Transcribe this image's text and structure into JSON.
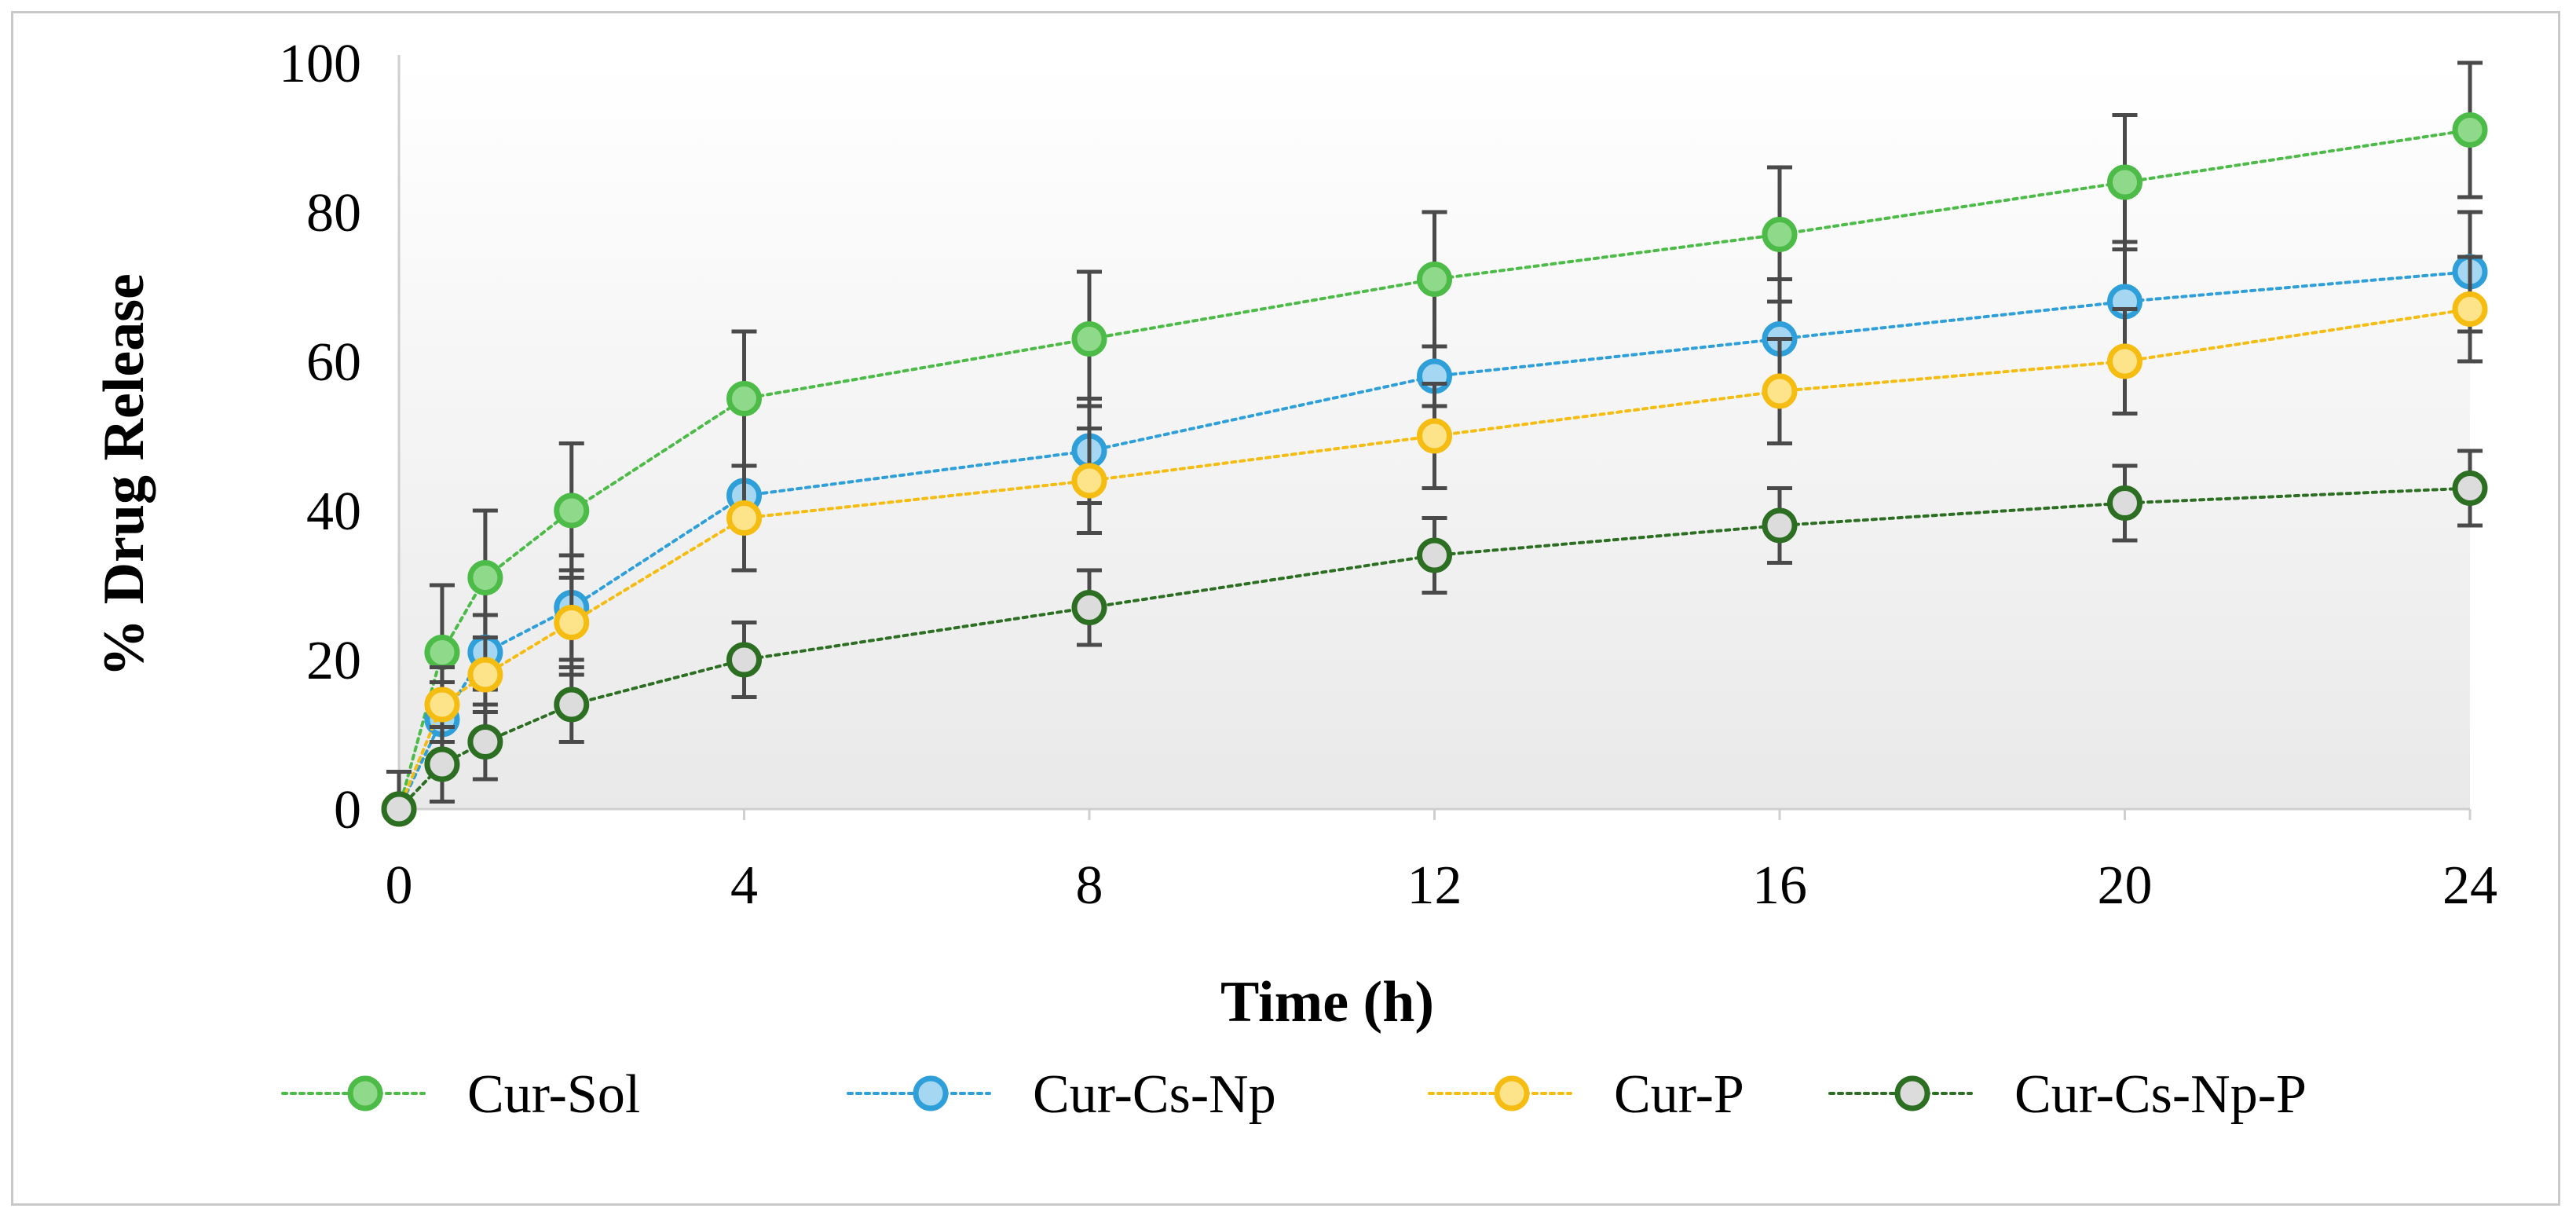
{
  "chart_data": {
    "type": "line",
    "title": "",
    "xlabel": "Time (h)",
    "ylabel": "% Drug Release",
    "x": [
      0,
      0.5,
      1,
      2,
      4,
      8,
      12,
      16,
      20,
      24
    ],
    "x_ticks": [
      0,
      4,
      8,
      12,
      16,
      20,
      24
    ],
    "y_ticks": [
      0,
      20,
      40,
      60,
      80,
      100
    ],
    "xlim": [
      0,
      24
    ],
    "ylim": [
      0,
      100
    ],
    "grid": false,
    "legend_position": "bottom",
    "error_bars": true,
    "series": [
      {
        "name": "Cur-Sol",
        "color": "#4cbb47",
        "fill": "#8fd98a",
        "values": [
          0,
          21,
          31,
          40,
          55,
          63,
          71,
          77,
          84,
          91
        ],
        "errors": [
          5,
          9,
          9,
          9,
          9,
          9,
          9,
          9,
          9,
          9
        ]
      },
      {
        "name": "Cur-Cs-Np",
        "color": "#2e9fd8",
        "fill": "#a6d7f2",
        "values": [
          0,
          12,
          21,
          27,
          42,
          48,
          58,
          63,
          68,
          72
        ],
        "errors": [
          5,
          5,
          5,
          7,
          4,
          7,
          4,
          8,
          8,
          8
        ]
      },
      {
        "name": "Cur-P",
        "color": "#f5bc12",
        "fill": "#fde38a",
        "values": [
          0,
          14,
          18,
          25,
          39,
          44,
          50,
          56,
          60,
          67
        ],
        "errors": [
          5,
          5,
          5,
          7,
          7,
          7,
          7,
          7,
          7,
          7
        ]
      },
      {
        "name": "Cur-Cs-Np-P",
        "color": "#2c6e22",
        "fill": "#dcdcdc",
        "values": [
          0,
          6,
          9,
          14,
          20,
          27,
          34,
          38,
          41,
          43
        ],
        "errors": [
          5,
          5,
          5,
          5,
          5,
          5,
          5,
          5,
          5,
          5
        ]
      }
    ]
  }
}
